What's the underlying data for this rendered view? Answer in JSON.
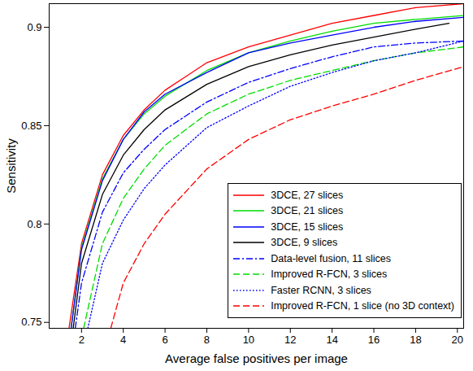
{
  "chart_data": {
    "type": "line",
    "x_label": "Average false positives per image",
    "y_label": "Sensitivity",
    "xlim": [
      0.45,
      20.3
    ],
    "ylim": [
      0.747,
      0.912
    ],
    "xticks": [
      2,
      4,
      6,
      8,
      10,
      12,
      14,
      16,
      18,
      20
    ],
    "yticks": [
      0.75,
      0.8,
      0.85,
      0.9
    ],
    "grid": false,
    "legend": "lower right",
    "series": [
      {
        "name": "3DCE, 27 slices",
        "color": "#ff0000",
        "line_style": "solid",
        "x": [
          1.4,
          2,
          3,
          4,
          5,
          6,
          7,
          8,
          10,
          12,
          14,
          16,
          18,
          20.3
        ],
        "values": [
          0.747,
          0.79,
          0.825,
          0.845,
          0.858,
          0.868,
          0.875,
          0.882,
          0.89,
          0.896,
          0.902,
          0.906,
          0.91,
          0.912
        ]
      },
      {
        "name": "3DCE, 21 slices",
        "color": "#00dd00",
        "line_style": "solid",
        "x": [
          1.5,
          2,
          3,
          4,
          5,
          6,
          8,
          10,
          12,
          14,
          16,
          18,
          20.3
        ],
        "values": [
          0.747,
          0.788,
          0.823,
          0.843,
          0.856,
          0.865,
          0.878,
          0.887,
          0.893,
          0.898,
          0.902,
          0.904,
          0.906
        ]
      },
      {
        "name": "3DCE, 15 slices",
        "color": "#0000ff",
        "line_style": "solid",
        "x": [
          1.5,
          2,
          3,
          4,
          5,
          6,
          8,
          10,
          12,
          14,
          16,
          18,
          20.3
        ],
        "values": [
          0.747,
          0.787,
          0.822,
          0.843,
          0.857,
          0.866,
          0.877,
          0.887,
          0.892,
          0.896,
          0.9,
          0.903,
          0.905
        ]
      },
      {
        "name": "3DCE, 9 slices",
        "color": "#000000",
        "line_style": "solid",
        "x": [
          1.6,
          2,
          3,
          4,
          5,
          6,
          8,
          10,
          12,
          14,
          16,
          18,
          19.6
        ],
        "values": [
          0.747,
          0.78,
          0.815,
          0.835,
          0.848,
          0.858,
          0.871,
          0.88,
          0.886,
          0.891,
          0.895,
          0.899,
          0.902
        ]
      },
      {
        "name": "Data-level fusion, 11 slices",
        "color": "#0000ff",
        "line_style": "dashdot",
        "x": [
          1.7,
          2,
          3,
          4,
          5,
          6,
          8,
          10,
          12,
          14,
          16,
          18,
          20.3
        ],
        "values": [
          0.747,
          0.77,
          0.806,
          0.826,
          0.838,
          0.848,
          0.862,
          0.872,
          0.879,
          0.885,
          0.89,
          0.892,
          0.893
        ]
      },
      {
        "name": "Improved R-FCN, 3 slices",
        "color": "#00dd00",
        "line_style": "dashed",
        "x": [
          2.1,
          3,
          4,
          5,
          6,
          8,
          10,
          12,
          14,
          16,
          18,
          20.3
        ],
        "values": [
          0.747,
          0.79,
          0.813,
          0.828,
          0.84,
          0.856,
          0.866,
          0.873,
          0.878,
          0.883,
          0.887,
          0.89
        ]
      },
      {
        "name": "Faster RCNN, 3 slices",
        "color": "#0000ff",
        "line_style": "dotted",
        "x": [
          2.3,
          3,
          4,
          5,
          6,
          8,
          10,
          12,
          14,
          16,
          18,
          20.3
        ],
        "values": [
          0.747,
          0.78,
          0.802,
          0.818,
          0.83,
          0.849,
          0.86,
          0.87,
          0.877,
          0.883,
          0.887,
          0.893
        ]
      },
      {
        "name": "Improved R-FCN, 1 slice (no 3D context)",
        "color": "#ff0000",
        "line_style": "dashed",
        "x": [
          3.4,
          4,
          5,
          6,
          8,
          10,
          12,
          14,
          16,
          18,
          20.3
        ],
        "values": [
          0.747,
          0.77,
          0.79,
          0.805,
          0.828,
          0.843,
          0.853,
          0.86,
          0.866,
          0.873,
          0.88
        ]
      }
    ]
  }
}
